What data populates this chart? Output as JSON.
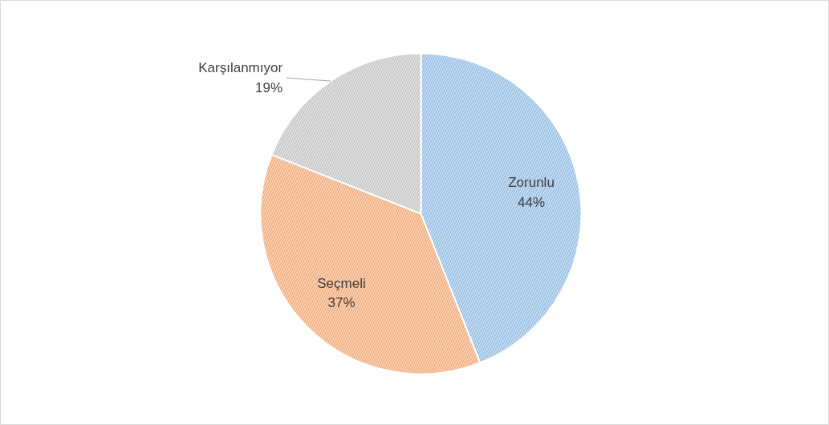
{
  "chart_data": {
    "type": "pie",
    "categories": [
      "Zorunlu",
      "Seçmeli",
      "Karşılanmıyor"
    ],
    "values": [
      44,
      37,
      19
    ],
    "colors": [
      "#9dc3e6",
      "#f4b183",
      "#c9c9c9"
    ],
    "value_labels": [
      "44%",
      "37%",
      "19%"
    ],
    "legend": false
  }
}
